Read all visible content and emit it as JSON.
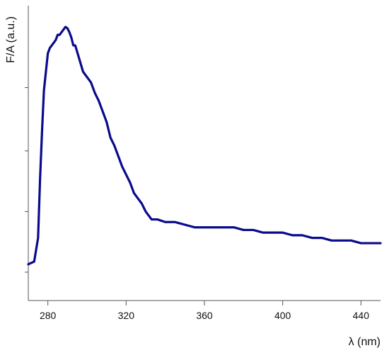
{
  "chart_data": {
    "type": "line",
    "title": "",
    "xlabel": "λ (nm)",
    "ylabel": "F/A (a.u.)",
    "xlim": [
      270,
      450
    ],
    "ylim": [
      0,
      1
    ],
    "x_ticks": [
      280,
      320,
      360,
      400,
      440
    ],
    "x_tick_labels": [
      "280",
      "320",
      "360",
      "400",
      "440"
    ],
    "y_ticks": [
      0.07,
      0.3,
      0.53,
      0.77
    ],
    "y_tick_labels": [
      "",
      "",
      "",
      ""
    ],
    "grid": false,
    "legend": "none",
    "series": [
      {
        "color": "#0a0a8c",
        "x": [
          270,
          273,
          275,
          276,
          277,
          278,
          279,
          280,
          281,
          282,
          283,
          284,
          285,
          286,
          287,
          288,
          289,
          290,
          291,
          292,
          293,
          294,
          296,
          298,
          300,
          302,
          304,
          306,
          308,
          310,
          312,
          314,
          316,
          318,
          320,
          322,
          324,
          326,
          328,
          330,
          333,
          336,
          340,
          345,
          350,
          355,
          360,
          365,
          370,
          375,
          380,
          385,
          390,
          395,
          400,
          405,
          410,
          415,
          420,
          425,
          430,
          435,
          440,
          445,
          450
        ],
        "y": [
          0.1,
          0.11,
          0.2,
          0.42,
          0.6,
          0.76,
          0.83,
          0.9,
          0.92,
          0.93,
          0.94,
          0.95,
          0.97,
          0.97,
          0.98,
          0.99,
          1.0,
          0.995,
          0.98,
          0.96,
          0.93,
          0.93,
          0.88,
          0.83,
          0.81,
          0.79,
          0.75,
          0.72,
          0.68,
          0.64,
          0.58,
          0.55,
          0.51,
          0.47,
          0.44,
          0.41,
          0.37,
          0.35,
          0.33,
          0.3,
          0.27,
          0.27,
          0.26,
          0.26,
          0.25,
          0.24,
          0.24,
          0.24,
          0.24,
          0.24,
          0.23,
          0.23,
          0.22,
          0.22,
          0.22,
          0.21,
          0.21,
          0.2,
          0.2,
          0.19,
          0.19,
          0.19,
          0.18,
          0.18,
          0.18
        ]
      }
    ]
  }
}
